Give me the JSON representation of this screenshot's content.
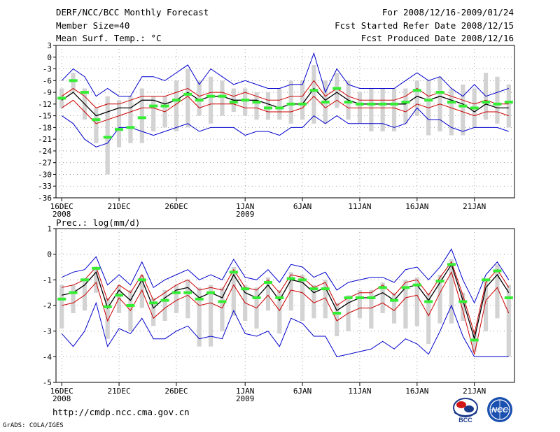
{
  "header": {
    "title": "DERF/NCC/BCC Monthly Forecast",
    "member_size": "Member Size=40",
    "variable": "Mean Surf. Temp.: °C",
    "period": "For 2008/12/16-2009/01/24",
    "fcst_started": "Fcst Started Refer Date 2008/12/15",
    "fcst_produced": "Fcst Produced Date 2008/12/16"
  },
  "footer": {
    "url": "http://cmdp.ncc.cma.gov.cn",
    "grads": "GrADS: COLA/IGES"
  },
  "logos": {
    "bcc_text": "BCC",
    "ncc_text": "NCC"
  },
  "colors": {
    "median": "#000000",
    "inner": "#cc0000",
    "outer": "#0000cc",
    "obs": "#33ee33",
    "box": "#d3d3d3",
    "grid": "#888888"
  },
  "chart_data": [
    {
      "type": "line",
      "title": "Mean Surf. Temp.: °C",
      "x_tick_labels": [
        "16DEC",
        "21DEC",
        "26DEC",
        "1JAN",
        "6JAN",
        "11JAN",
        "16JAN",
        "21JAN"
      ],
      "x_tick_days": [
        1,
        6,
        11,
        17,
        22,
        27,
        32,
        37
      ],
      "x_year_labels": [
        {
          "day": 1,
          "label": "2008"
        },
        {
          "day": 17,
          "label": "2009"
        }
      ],
      "ylim": [
        -36,
        3
      ],
      "yticks": [
        3,
        0,
        -3,
        -6,
        -9,
        -12,
        -15,
        -18,
        -21,
        -24,
        -27,
        -30,
        -33,
        -36
      ],
      "x_days": [
        1,
        2,
        3,
        4,
        5,
        6,
        7,
        8,
        9,
        10,
        11,
        12,
        13,
        14,
        15,
        16,
        17,
        18,
        19,
        20,
        21,
        22,
        23,
        24,
        25,
        26,
        27,
        28,
        29,
        30,
        31,
        32,
        33,
        34,
        35,
        36,
        37,
        38,
        39,
        40
      ],
      "median": [
        -11,
        -9,
        -12,
        -15,
        -14,
        -13,
        -13,
        -11,
        -11,
        -12,
        -11,
        -9,
        -11,
        -10,
        -10,
        -11,
        -11,
        -11,
        -12,
        -13,
        -12,
        -12,
        -8,
        -11,
        -9,
        -11,
        -12,
        -12,
        -12,
        -12,
        -12,
        -10,
        -11,
        -10,
        -11,
        -12,
        -14,
        -12,
        -13,
        -13
      ],
      "inner_upper": [
        -10,
        -8,
        -10,
        -13,
        -12,
        -12,
        -11,
        -10,
        -10,
        -10,
        -9,
        -8,
        -10,
        -9,
        -9,
        -10,
        -9,
        -10,
        -11,
        -11,
        -10,
        -10,
        -6,
        -10,
        -8,
        -10,
        -11,
        -11,
        -11,
        -11,
        -10,
        -8,
        -10,
        -9,
        -10,
        -11,
        -12,
        -11,
        -12,
        -12
      ],
      "inner_lower": [
        -13,
        -11,
        -14,
        -17,
        -16,
        -15,
        -14,
        -13,
        -13,
        -14,
        -12,
        -10,
        -13,
        -12,
        -12,
        -12,
        -13,
        -13,
        -14,
        -14,
        -14,
        -13,
        -10,
        -13,
        -11,
        -13,
        -13,
        -13,
        -13,
        -13,
        -14,
        -12,
        -13,
        -12,
        -13,
        -14,
        -15,
        -14,
        -14,
        -15
      ],
      "outer_upper": [
        -6,
        -3,
        -5,
        -10,
        -8,
        -10,
        -10,
        -5,
        -5,
        -6,
        -4,
        -2,
        -7,
        -3,
        -5,
        -7,
        -6,
        -7,
        -8,
        -8,
        -7,
        -7,
        1,
        -9,
        -3,
        -7,
        -8,
        -8,
        -8,
        -8,
        -6,
        -4,
        -6,
        -5,
        -8,
        -10,
        -7,
        -10,
        -9,
        -8
      ],
      "outer_lower": [
        -15,
        -17,
        -21,
        -23,
        -22,
        -18,
        -18,
        -19,
        -20,
        -19,
        -18,
        -17,
        -19,
        -18,
        -18,
        -18,
        -20,
        -19,
        -19,
        -20,
        -18,
        -18,
        -15,
        -17,
        -15,
        -17,
        -17,
        -17,
        -17,
        -18,
        -17,
        -13,
        -16,
        -16,
        -18,
        -19,
        -18,
        -18,
        -18,
        -19
      ],
      "box_top": [
        -8,
        -4,
        -8,
        -13,
        -10,
        -11,
        -10,
        -8,
        -10,
        -10,
        -6,
        -3,
        -6,
        -5,
        -6,
        -8,
        -8,
        -9,
        -9,
        -8,
        -6,
        -6,
        -2,
        -6,
        -4,
        -6,
        -9,
        -8,
        -8,
        -8,
        -8,
        -6,
        -6,
        -5,
        -8,
        -7,
        -8,
        -4,
        -5,
        -7
      ],
      "box_bottom": [
        -13,
        -9,
        -16,
        -22,
        -30,
        -23,
        -22,
        -22,
        -19,
        -18,
        -19,
        -18,
        -15,
        -17,
        -15,
        -14,
        -15,
        -16,
        -16,
        -16,
        -17,
        -16,
        -17,
        -17,
        -13,
        -16,
        -17,
        -19,
        -19,
        -19,
        -17,
        -15,
        -20,
        -19,
        -20,
        -20,
        -18,
        -16,
        -17,
        -18
      ],
      "observed": [
        -10.5,
        -6,
        -9,
        -16,
        -20.5,
        -18.5,
        -18,
        -15.5,
        -12.5,
        -12.5,
        -11,
        -9.5,
        -11,
        -10,
        -10,
        -11.5,
        -11,
        -11.5,
        -13,
        -13,
        -12,
        -12,
        -8.5,
        -11.5,
        -8,
        -11.5,
        -12,
        -12,
        -12,
        -12,
        -11.5,
        -8.5,
        -11,
        -9,
        -11.5,
        -12.5,
        -13,
        -11.5,
        -12,
        -11.5
      ]
    },
    {
      "type": "line",
      "title": "Prec.: log(mm/d)",
      "x_tick_labels": [
        "16DEC",
        "21DEC",
        "26DEC",
        "1JAN",
        "6JAN",
        "11JAN",
        "16JAN",
        "21JAN"
      ],
      "x_tick_days": [
        1,
        6,
        11,
        17,
        22,
        27,
        32,
        37
      ],
      "x_year_labels": [
        {
          "day": 1,
          "label": "2008"
        },
        {
          "day": 17,
          "label": "2009"
        }
      ],
      "ylim": [
        -5,
        1
      ],
      "yticks": [
        1,
        0,
        -1,
        -2,
        -3,
        -4,
        -5
      ],
      "x_days": [
        1,
        2,
        3,
        4,
        5,
        6,
        7,
        8,
        9,
        10,
        11,
        12,
        13,
        14,
        15,
        16,
        17,
        18,
        19,
        20,
        21,
        22,
        23,
        24,
        25,
        26,
        27,
        28,
        29,
        30,
        31,
        32,
        33,
        34,
        35,
        36,
        37,
        38,
        39,
        40
      ],
      "median": [
        -1.6,
        -1.5,
        -1.2,
        -0.7,
        -2.1,
        -1.4,
        -1.8,
        -1.0,
        -2.1,
        -1.7,
        -1.4,
        -1.3,
        -1.7,
        -1.5,
        -1.7,
        -0.8,
        -1.5,
        -1.7,
        -1.2,
        -1.8,
        -1.0,
        -1.1,
        -1.5,
        -1.3,
        -2.2,
        -1.9,
        -1.7,
        -1.7,
        -1.5,
        -1.8,
        -1.3,
        -1.2,
        -1.8,
        -1.1,
        -0.4,
        -1.8,
        -3.3,
        -1.3,
        -0.8,
        -1.5
      ],
      "inner_upper": [
        -1.3,
        -1.2,
        -1.0,
        -0.5,
        -1.8,
        -1.2,
        -1.5,
        -0.8,
        -1.8,
        -1.5,
        -1.2,
        -1.0,
        -1.4,
        -1.3,
        -1.4,
        -0.6,
        -1.3,
        -1.4,
        -1.0,
        -1.5,
        -0.8,
        -0.9,
        -1.3,
        -1.1,
        -2.0,
        -1.7,
        -1.5,
        -1.5,
        -1.2,
        -1.6,
        -1.1,
        -1.0,
        -1.6,
        -0.9,
        -0.3,
        -1.6,
        -3.1,
        -1.1,
        -0.6,
        -1.3
      ],
      "inner_lower": [
        -2.0,
        -1.9,
        -1.6,
        -1.1,
        -2.6,
        -1.7,
        -2.2,
        -1.4,
        -2.5,
        -2.1,
        -1.8,
        -1.6,
        -2.0,
        -1.9,
        -2.1,
        -1.2,
        -1.9,
        -2.1,
        -1.6,
        -2.2,
        -1.4,
        -1.5,
        -1.9,
        -1.7,
        -2.6,
        -2.3,
        -2.1,
        -2.1,
        -1.9,
        -2.2,
        -1.7,
        -1.6,
        -2.4,
        -1.5,
        -0.7,
        -2.2,
        -3.9,
        -1.8,
        -1.3,
        -2.3
      ],
      "outer_upper": [
        -0.9,
        -0.7,
        -0.6,
        -0.1,
        -1.2,
        -0.8,
        -1.2,
        -0.3,
        -1.3,
        -1.0,
        -0.8,
        -0.6,
        -1.0,
        -0.8,
        -1.0,
        -0.2,
        -0.9,
        -1.0,
        -0.6,
        -1.1,
        -0.4,
        -0.5,
        -0.9,
        -0.7,
        -1.4,
        -1.1,
        -1.0,
        -0.9,
        -0.9,
        -1.1,
        -0.6,
        -0.5,
        -1.0,
        -0.5,
        0.2,
        -1.0,
        -1.9,
        -0.8,
        -0.3,
        -1.0
      ],
      "outer_lower": [
        -3.1,
        -3.6,
        -3.0,
        -1.9,
        -3.6,
        -2.9,
        -3.1,
        -2.5,
        -3.3,
        -3.3,
        -3.0,
        -2.8,
        -3.3,
        -3.2,
        -3.3,
        -2.2,
        -3.1,
        -3.2,
        -3.0,
        -3.6,
        -2.5,
        -2.7,
        -3.2,
        -3.2,
        -4.0,
        -3.9,
        -3.8,
        -3.7,
        -3.4,
        -3.7,
        -3.3,
        -3.5,
        -3.9,
        -3.0,
        -2.0,
        -3.2,
        -4.0,
        -4.0,
        -4.0,
        -4.0
      ],
      "box_top": [
        -1.2,
        -1.2,
        -1.0,
        -0.5,
        -1.7,
        -1.2,
        -1.4,
        -0.8,
        -1.7,
        -1.4,
        -1.2,
        -1.0,
        -1.3,
        -1.2,
        -1.3,
        -0.5,
        -1.2,
        -1.3,
        -0.9,
        -1.4,
        -0.7,
        -0.8,
        -1.2,
        -1.0,
        -1.9,
        -1.6,
        -1.4,
        -1.4,
        -1.1,
        -1.5,
        -1.0,
        -0.9,
        -1.5,
        -0.8,
        -0.2,
        -1.5,
        -3.0,
        -1.0,
        -0.4,
        -1.2
      ],
      "box_bottom": [
        -2.9,
        -2.3,
        -2.2,
        -1.5,
        -3.3,
        -2.3,
        -3.0,
        -2.1,
        -2.8,
        -2.6,
        -2.3,
        -2.5,
        -3.6,
        -3.6,
        -3.0,
        -2.4,
        -2.6,
        -2.9,
        -2.2,
        -3.1,
        -2.2,
        -2.6,
        -2.5,
        -2.5,
        -3.2,
        -3.0,
        -2.5,
        -2.9,
        -2.3,
        -2.7,
        -2.9,
        -2.8,
        -3.5,
        -2.7,
        -2.7,
        -2.6,
        -3.8,
        -3.0,
        -2.5,
        -4.0
      ],
      "observed": [
        -1.75,
        -1.5,
        -1.0,
        -0.55,
        -2.05,
        -1.6,
        -2.0,
        -1.0,
        -1.9,
        -1.8,
        -1.5,
        -1.5,
        -1.75,
        -1.5,
        -1.85,
        -0.7,
        -1.35,
        -1.7,
        -1.1,
        -1.7,
        -0.95,
        -1.0,
        -1.35,
        -1.35,
        -2.3,
        -1.7,
        -1.7,
        -1.7,
        -1.3,
        -1.8,
        -1.3,
        -1.2,
        -1.85,
        -1.05,
        -0.4,
        -1.85,
        -3.35,
        -1.0,
        -0.65,
        -1.7
      ]
    }
  ]
}
